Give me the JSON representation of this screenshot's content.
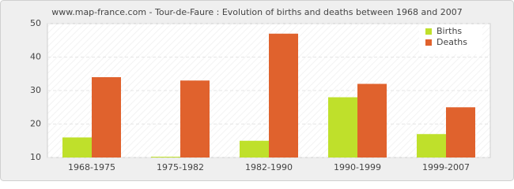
{
  "chart_data": {
    "type": "bar",
    "title": "www.map-france.com - Tour-de-Faure : Evolution of births and deaths between 1968 and 2007",
    "categories": [
      "1968-1975",
      "1975-1982",
      "1982-1990",
      "1990-1999",
      "1999-2007"
    ],
    "series": [
      {
        "name": "Births",
        "color": "#bfe02b",
        "values": [
          16,
          10,
          15,
          28,
          17
        ]
      },
      {
        "name": "Deaths",
        "color": "#e0622d",
        "values": [
          34,
          33,
          47,
          32,
          25
        ]
      }
    ],
    "ylim": [
      10,
      50
    ],
    "yticks": [
      10,
      20,
      30,
      40,
      50
    ],
    "grid": true,
    "legend": "top-right"
  }
}
